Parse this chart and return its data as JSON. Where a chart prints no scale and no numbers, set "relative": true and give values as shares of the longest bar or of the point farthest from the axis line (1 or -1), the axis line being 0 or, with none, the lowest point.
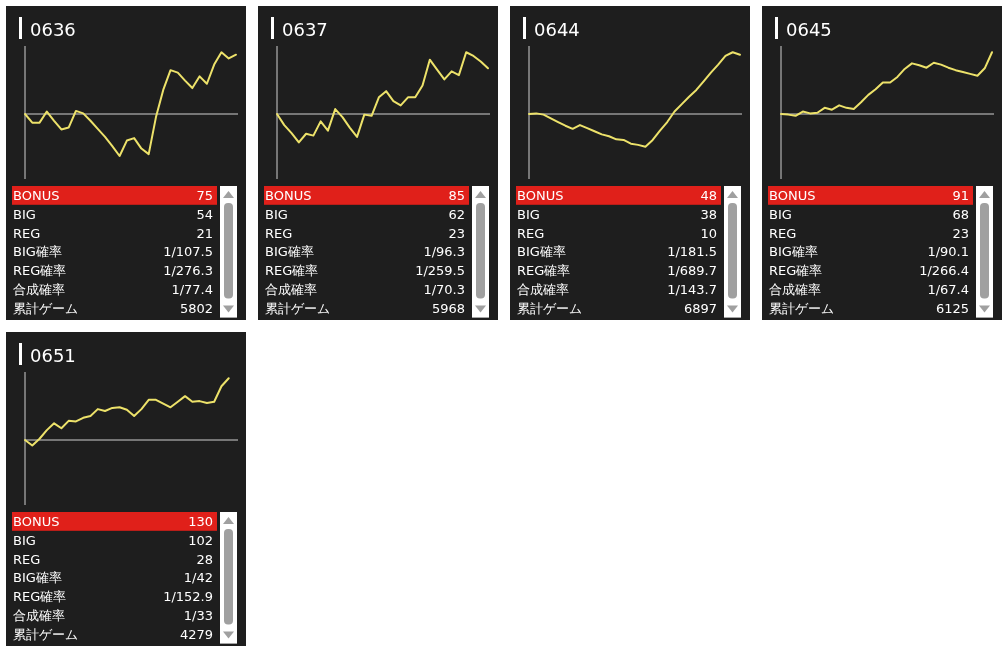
{
  "chart_data": [
    {
      "type": "line",
      "title": "0636",
      "relative": true,
      "categories": [
        null,
        null,
        null,
        null,
        null,
        null,
        null,
        null,
        null,
        null,
        null,
        null,
        null,
        null,
        null,
        null,
        null,
        null,
        null,
        null,
        null,
        null,
        null,
        null,
        null,
        null,
        null,
        null,
        null,
        null
      ],
      "series": [
        {
          "color": "#ede26a",
          "values": [
            0,
            -0.14,
            -0.14,
            0.04,
            -0.11,
            -0.25,
            -0.22,
            0.05,
            0.01,
            -0.11,
            -0.24,
            -0.37,
            -0.52,
            -0.68,
            -0.43,
            -0.39,
            -0.56,
            -0.65,
            -0.05,
            0.39,
            0.71,
            0.67,
            0.54,
            0.42,
            0.61,
            0.49,
            0.8,
            1,
            0.9,
            0.96
          ]
        }
      ],
      "annotations": [
        "BONUS",
        "75",
        "BIG",
        "54",
        "REG",
        "21",
        "BIG確率",
        "1/107.5",
        "REG確率",
        "1/276.3",
        "合成確率",
        "1/77.4",
        "累計ゲーム",
        "5802"
      ]
    },
    {
      "type": "line",
      "title": "0637",
      "relative": true,
      "categories": [
        null,
        null,
        null,
        null,
        null,
        null,
        null,
        null,
        null,
        null,
        null,
        null,
        null,
        null,
        null,
        null,
        null,
        null,
        null,
        null,
        null,
        null,
        null,
        null,
        null,
        null,
        null,
        null,
        null,
        null
      ],
      "series": [
        {
          "color": "#ede26a",
          "values": [
            0,
            -0.18,
            -0.31,
            -0.46,
            -0.32,
            -0.35,
            -0.12,
            -0.27,
            0.08,
            -0.05,
            -0.22,
            -0.37,
            -0.01,
            -0.03,
            0.27,
            0.37,
            0.21,
            0.14,
            0.27,
            0.27,
            0.46,
            0.88,
            0.72,
            0.56,
            0.69,
            0.63,
            1,
            0.94,
            0.85,
            0.74
          ]
        }
      ],
      "annotations": [
        "BONUS",
        "85",
        "BIG",
        "62",
        "REG",
        "23",
        "BIG確率",
        "1/96.3",
        "REG確率",
        "1/259.5",
        "合成確率",
        "1/70.3",
        "累計ゲーム",
        "5968"
      ]
    },
    {
      "type": "line",
      "title": "0644",
      "relative": true,
      "categories": [
        null,
        null,
        null,
        null,
        null,
        null,
        null,
        null,
        null,
        null,
        null,
        null,
        null,
        null,
        null,
        null,
        null,
        null,
        null,
        null,
        null,
        null,
        null,
        null,
        null,
        null,
        null,
        null,
        null,
        null
      ],
      "series": [
        {
          "color": "#ede26a",
          "values": [
            0,
            0.01,
            -0.01,
            -0.07,
            -0.13,
            -0.19,
            -0.24,
            -0.18,
            -0.23,
            -0.28,
            -0.33,
            -0.36,
            -0.41,
            -0.42,
            -0.48,
            -0.5,
            -0.53,
            -0.42,
            -0.27,
            -0.13,
            0.04,
            0.16,
            0.28,
            0.39,
            0.53,
            0.67,
            0.8,
            0.94,
            1,
            0.96
          ]
        }
      ],
      "annotations": [
        "BONUS",
        "48",
        "BIG",
        "38",
        "REG",
        "10",
        "BIG確率",
        "1/181.5",
        "REG確率",
        "1/689.7",
        "合成確率",
        "1/143.7",
        "累計ゲーム",
        "6897"
      ]
    },
    {
      "type": "line",
      "title": "0645",
      "relative": true,
      "categories": [
        null,
        null,
        null,
        null,
        null,
        null,
        null,
        null,
        null,
        null,
        null,
        null,
        null,
        null,
        null,
        null,
        null,
        null,
        null,
        null,
        null,
        null,
        null,
        null,
        null,
        null,
        null,
        null,
        null,
        null
      ],
      "series": [
        {
          "color": "#ede26a",
          "values": [
            0,
            -0.01,
            -0.03,
            0.04,
            0.01,
            0.02,
            0.1,
            0.07,
            0.14,
            0.1,
            0.08,
            0.19,
            0.31,
            0.4,
            0.51,
            0.51,
            0.6,
            0.73,
            0.82,
            0.79,
            0.75,
            0.83,
            0.8,
            0.75,
            0.71,
            0.68,
            0.65,
            0.62,
            0.74,
            1
          ]
        }
      ],
      "annotations": [
        "BONUS",
        "91",
        "BIG",
        "68",
        "REG",
        "23",
        "BIG確率",
        "1/90.1",
        "REG確率",
        "1/266.4",
        "合成確率",
        "1/67.4",
        "累計ゲーム",
        "6125"
      ]
    },
    {
      "type": "line",
      "title": "0651",
      "relative": true,
      "categories": [
        null,
        null,
        null,
        null,
        null,
        null,
        null,
        null,
        null,
        null,
        null,
        null,
        null,
        null,
        null,
        null,
        null,
        null,
        null,
        null,
        null,
        null,
        null,
        null,
        null,
        null,
        null,
        null,
        null,
        null
      ],
      "series": [
        {
          "color": "#ede26a",
          "values": [
            0,
            -0.09,
            0.02,
            0.16,
            0.27,
            0.19,
            0.31,
            0.3,
            0.36,
            0.39,
            0.5,
            0.47,
            0.52,
            0.53,
            0.49,
            0.39,
            0.5,
            0.65,
            0.65,
            0.59,
            0.53,
            0.62,
            0.71,
            0.62,
            0.63,
            0.6,
            0.62,
            0.87,
            1,
            null
          ]
        }
      ],
      "annotations": [
        "BONUS",
        "130",
        "BIG",
        "102",
        "REG",
        "28",
        "BIG確率",
        "1/42",
        "REG確率",
        "1/152.9",
        "合成確率",
        "1/33",
        "累計ゲーム",
        "4279"
      ]
    }
  ]
}
